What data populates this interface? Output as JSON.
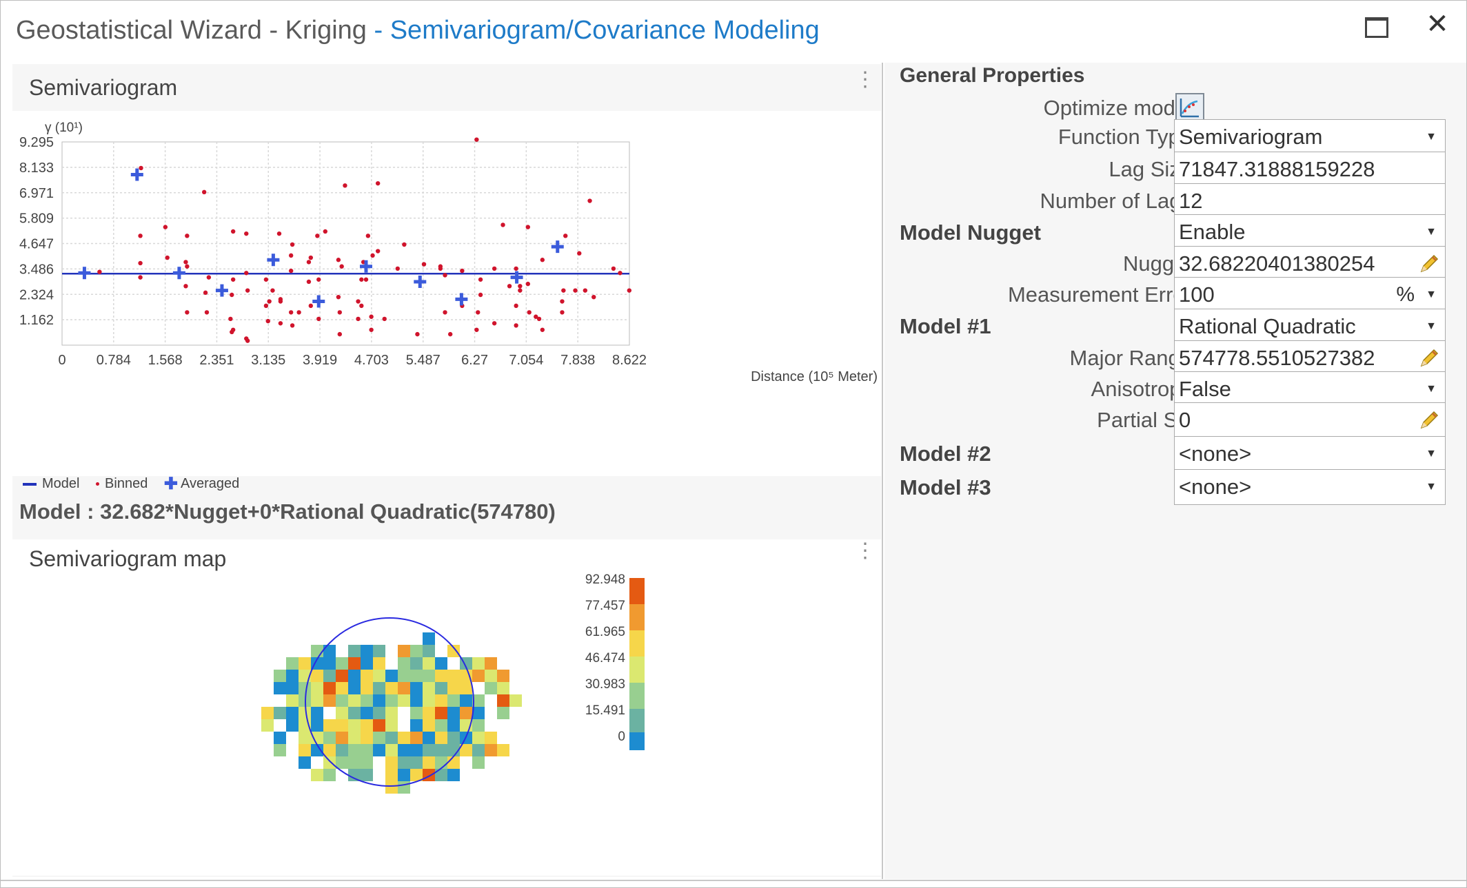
{
  "window": {
    "title": "Geostatistical Wizard - Kriging",
    "subtitle": "- Semivariogram/Covariance Modeling",
    "maximize_icon": "maximize-icon",
    "close_icon": "close-icon",
    "close_glyph": "✕"
  },
  "semivariogram": {
    "panel_title": "Semivariogram",
    "menu_icon": "kebab-menu-icon",
    "legend": {
      "model": "Model",
      "binned": "Binned",
      "averaged": "Averaged"
    },
    "model_text": "Model : 32.682*Nugget+0*Rational Quadratic(574780)"
  },
  "chart_data": {
    "type": "scatter",
    "ylabel": "γ (10¹)",
    "xlabel": "Distance (10⁵ Meter)",
    "x_ticks": [
      "0",
      "0.784",
      "1.568",
      "2.351",
      "3.135",
      "3.919",
      "4.703",
      "5.487",
      "6.27",
      "7.054",
      "7.838",
      "8.622"
    ],
    "y_ticks": [
      "1.162",
      "2.324",
      "3.486",
      "4.647",
      "5.809",
      "6.971",
      "8.133",
      "9.295"
    ],
    "xlim": [
      0,
      8.622
    ],
    "ylim": [
      0,
      9.295
    ],
    "grid": true,
    "legend_placement": "bottom-left",
    "series": [
      {
        "name": "Model",
        "color": "#2233bb",
        "type": "line",
        "x": [
          0,
          8.622
        ],
        "y": [
          3.27,
          3.27
        ]
      },
      {
        "name": "Binned",
        "color": "#d0142c",
        "type": "scatter",
        "x": [
          0.57,
          1.2,
          1.19,
          1.19,
          1.19,
          1.57,
          1.6,
          1.88,
          1.88,
          1.9,
          1.9,
          1.9,
          2.16,
          2.18,
          2.2,
          2.23,
          2.56,
          2.58,
          2.58,
          2.6,
          2.6,
          2.6,
          2.8,
          2.8,
          2.8,
          2.82,
          2.82,
          3.1,
          3.1,
          3.13,
          3.15,
          3.2,
          3.3,
          3.32,
          3.32,
          3.32,
          3.48,
          3.48,
          3.48,
          3.5,
          3.5,
          3.6,
          3.75,
          3.75,
          3.78,
          3.78,
          3.88,
          3.9,
          3.9,
          4.0,
          4.2,
          4.2,
          4.22,
          4.22,
          4.25,
          4.3,
          4.5,
          4.5,
          4.55,
          4.55,
          4.58,
          4.62,
          4.65,
          4.7,
          4.7,
          4.72,
          4.8,
          4.8,
          4.9,
          5.1,
          5.2,
          5.4,
          5.5,
          5.75,
          5.75,
          5.82,
          5.82,
          5.9,
          6.08,
          6.08,
          6.3,
          6.3,
          6.32,
          6.36,
          6.36,
          6.57,
          6.57,
          6.7,
          6.8,
          6.9,
          6.9,
          6.9,
          6.96,
          6.96,
          7.08,
          7.08,
          7.1,
          7.2,
          7.25,
          7.3,
          7.3,
          7.6,
          7.6,
          7.62,
          7.65,
          7.8,
          7.86,
          7.95,
          8.02,
          8.08,
          8.38,
          8.48,
          8.62,
          8.75
        ],
        "y": [
          3.35,
          8.1,
          3.75,
          3.1,
          5.0,
          5.4,
          4.0,
          3.8,
          2.7,
          1.5,
          5.0,
          3.6,
          7.0,
          2.4,
          1.5,
          3.1,
          1.2,
          0.6,
          2.3,
          5.2,
          3.0,
          0.7,
          3.3,
          5.1,
          0.3,
          0.2,
          2.5,
          1.8,
          3.0,
          1.1,
          2.0,
          2.5,
          5.1,
          2.1,
          1.0,
          2.0,
          4.1,
          3.4,
          1.5,
          0.9,
          4.6,
          1.5,
          3.8,
          2.9,
          4.0,
          1.8,
          5.0,
          1.2,
          3.0,
          5.2,
          3.9,
          2.2,
          1.5,
          0.5,
          3.6,
          7.3,
          2.0,
          1.2,
          3.0,
          1.8,
          3.8,
          3.0,
          5.0,
          1.3,
          0.7,
          4.1,
          4.3,
          7.4,
          1.2,
          3.5,
          4.6,
          0.5,
          3.7,
          3.6,
          3.5,
          1.5,
          3.2,
          0.5,
          3.4,
          1.8,
          9.4,
          0.7,
          1.5,
          3.0,
          2.3,
          1.0,
          3.5,
          5.5,
          2.7,
          0.9,
          1.8,
          3.5,
          2.7,
          2.5,
          5.4,
          2.8,
          1.5,
          1.3,
          1.2,
          0.7,
          3.9,
          1.5,
          2.0,
          2.5,
          5.0,
          2.5,
          4.2,
          2.5,
          6.6,
          2.2,
          3.5,
          3.3,
          2.5,
          3.3
        ]
      },
      {
        "name": "Averaged",
        "color": "#3b5bdb",
        "type": "scatter",
        "x": [
          0.34,
          1.14,
          1.78,
          2.43,
          3.21,
          3.9,
          4.62,
          5.44,
          6.07,
          6.91,
          7.53
        ],
        "y": [
          3.3,
          7.8,
          3.3,
          2.5,
          3.9,
          2.0,
          3.6,
          2.9,
          2.1,
          3.1,
          4.5
        ]
      }
    ]
  },
  "semivariogram_map": {
    "panel_title": "Semivariogram map",
    "menu_icon": "kebab-menu-icon",
    "colorbar_labels": [
      "92.948",
      "77.457",
      "61.965",
      "46.474",
      "30.983",
      "15.491",
      "0"
    ],
    "colorbar_colors": [
      "#e45a12",
      "#f09a30",
      "#f6d64a",
      "#dbe870",
      "#98cf90",
      "#6bb2a2",
      "#1d8cd0"
    ]
  },
  "properties": {
    "section_title": "General Properties",
    "optimize_label": "Optimize model",
    "optimize_icon": "optimize-model-icon",
    "function_type_label": "Function Type",
    "function_type_value": "Semivariogram",
    "lag_size_label": "Lag Size",
    "lag_size_value": "71847.31888159228",
    "num_lags_label": "Number of Lags",
    "num_lags_value": "12",
    "model_nugget_label": "Model Nugget",
    "model_nugget_value": "Enable",
    "nugget_label": "Nugget",
    "nugget_value": "32.68220401380254",
    "measurement_error_label": "Measurement Error",
    "measurement_error_value": "100",
    "measurement_error_unit": "%",
    "model1_label": "Model #1",
    "model1_value": "Rational Quadratic",
    "major_range_label": "Major Range",
    "major_range_value": "574778.5510527382",
    "anisotropy_label": "Anisotropy",
    "anisotropy_value": "False",
    "partial_sill_label": "Partial Sill",
    "partial_sill_value": "0",
    "model2_label": "Model #2",
    "model2_value": "<none>",
    "model3_label": "Model #3",
    "model3_value": "<none>",
    "dropdown_icon": "chevron-down-icon",
    "dropdown_glyph": "▼",
    "edit_icon": "pencil-icon"
  }
}
